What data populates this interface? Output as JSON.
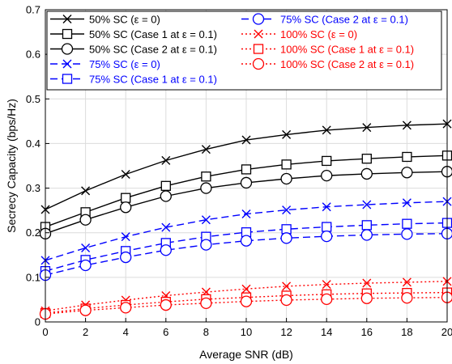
{
  "chart_data": {
    "type": "line",
    "xlabel": "Average SNR (dB)",
    "ylabel": "Secrecy Capacity (bps/Hz)",
    "xlim": [
      0,
      20
    ],
    "ylim": [
      0,
      0.7
    ],
    "x_ticks": [
      "0",
      "2",
      "4",
      "6",
      "8",
      "10",
      "12",
      "14",
      "16",
      "18",
      "20"
    ],
    "y_ticks": [
      "0",
      "0.1",
      "0.2",
      "0.3",
      "0.4",
      "0.5",
      "0.6",
      "0.7"
    ],
    "grid": true,
    "legend_position": "top",
    "x": [
      0,
      2,
      4,
      6,
      8,
      10,
      12,
      14,
      16,
      18,
      20
    ],
    "series": [
      {
        "name": "50% SC (ε = 0)",
        "color": "#000000",
        "dash": "solid",
        "marker": "x",
        "values": [
          0.252,
          0.294,
          0.331,
          0.362,
          0.387,
          0.408,
          0.42,
          0.43,
          0.436,
          0.441,
          0.444
        ]
      },
      {
        "name": "50% SC (Case 1 at ε = 0.1)",
        "color": "#000000",
        "dash": "solid",
        "marker": "square",
        "values": [
          0.213,
          0.246,
          0.278,
          0.305,
          0.326,
          0.342,
          0.353,
          0.361,
          0.366,
          0.37,
          0.373
        ]
      },
      {
        "name": "50% SC (Case 2 at ε = 0.1)",
        "color": "#000000",
        "dash": "solid",
        "marker": "circle",
        "values": [
          0.198,
          0.229,
          0.257,
          0.282,
          0.3,
          0.312,
          0.321,
          0.328,
          0.332,
          0.335,
          0.337
        ]
      },
      {
        "name": "75% SC (ε = 0)",
        "color": "#0000ff",
        "dash": "dashed",
        "marker": "x",
        "values": [
          0.138,
          0.166,
          0.191,
          0.212,
          0.229,
          0.242,
          0.251,
          0.258,
          0.263,
          0.267,
          0.27
        ]
      },
      {
        "name": "75% SC (Case 1 at ε = 0.1)",
        "color": "#0000ff",
        "dash": "dashed",
        "marker": "square",
        "values": [
          0.114,
          0.139,
          0.159,
          0.177,
          0.191,
          0.201,
          0.208,
          0.213,
          0.217,
          0.22,
          0.222
        ]
      },
      {
        "name": "75% SC (Case 2 at ε = 0.1)",
        "color": "#0000ff",
        "dash": "dashed",
        "marker": "circle",
        "values": [
          0.105,
          0.127,
          0.145,
          0.161,
          0.173,
          0.182,
          0.188,
          0.192,
          0.195,
          0.197,
          0.198
        ]
      },
      {
        "name": "100% SC (ε = 0)",
        "color": "#ff0000",
        "dash": "dotted",
        "marker": "x",
        "values": [
          0.025,
          0.038,
          0.049,
          0.059,
          0.067,
          0.074,
          0.08,
          0.084,
          0.087,
          0.089,
          0.091
        ]
      },
      {
        "name": "100% SC (Case 1 at ε = 0.1)",
        "color": "#ff0000",
        "dash": "dotted",
        "marker": "square",
        "values": [
          0.02,
          0.03,
          0.038,
          0.045,
          0.051,
          0.055,
          0.059,
          0.062,
          0.064,
          0.065,
          0.066
        ]
      },
      {
        "name": "100% SC (Case 2 at ε = 0.1)",
        "color": "#ff0000",
        "dash": "dotted",
        "marker": "circle",
        "values": [
          0.018,
          0.026,
          0.032,
          0.038,
          0.042,
          0.046,
          0.049,
          0.051,
          0.053,
          0.054,
          0.055
        ]
      }
    ]
  }
}
